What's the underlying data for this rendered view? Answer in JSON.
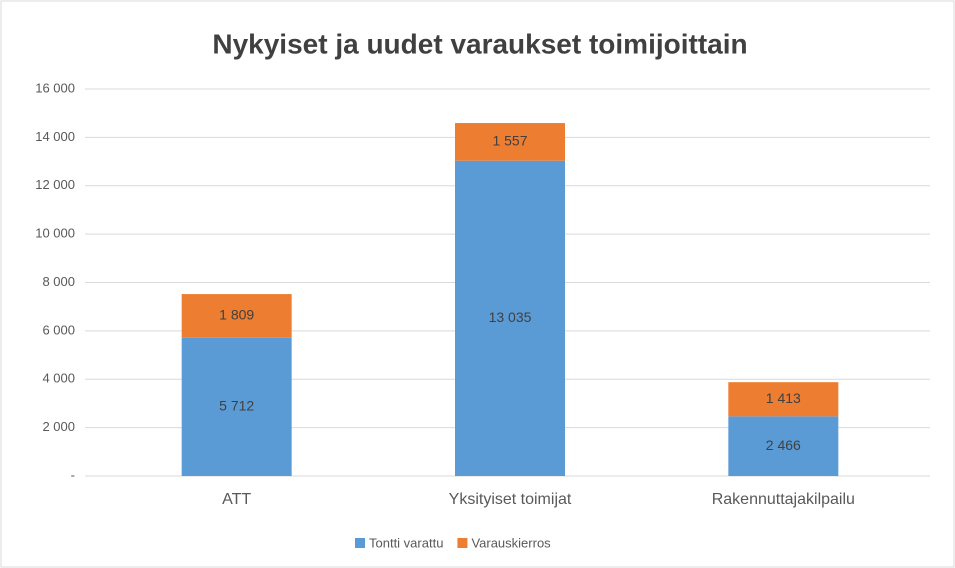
{
  "chart_data": {
    "type": "stacked_bar",
    "title": "Nykyiset ja uudet varaukset toimijoittain",
    "categories": [
      "ATT",
      "Yksityiset toimijat",
      "Rakennuttajakilpailu"
    ],
    "series": [
      {
        "name": "Tontti varattu",
        "color": "#5b9bd5",
        "values": [
          5712,
          13035,
          2466
        ],
        "value_labels": [
          "5 712",
          "13 035",
          "2 466"
        ]
      },
      {
        "name": "Varauskierros",
        "color": "#ed7d31",
        "values": [
          1809,
          1557,
          1413
        ],
        "value_labels": [
          "1 809",
          "1 557",
          "1 413"
        ]
      }
    ],
    "ylim": [
      0,
      16000
    ],
    "yticks": [
      {
        "value": 0,
        "label": "-"
      },
      {
        "value": 2000,
        "label": "2 000"
      },
      {
        "value": 4000,
        "label": "4 000"
      },
      {
        "value": 6000,
        "label": "6 000"
      },
      {
        "value": 8000,
        "label": "8 000"
      },
      {
        "value": 10000,
        "label": "10 000"
      },
      {
        "value": 12000,
        "label": "12 000"
      },
      {
        "value": 14000,
        "label": "14 000"
      },
      {
        "value": 16000,
        "label": "16 000"
      }
    ],
    "grid": true,
    "legend": "bottom"
  }
}
